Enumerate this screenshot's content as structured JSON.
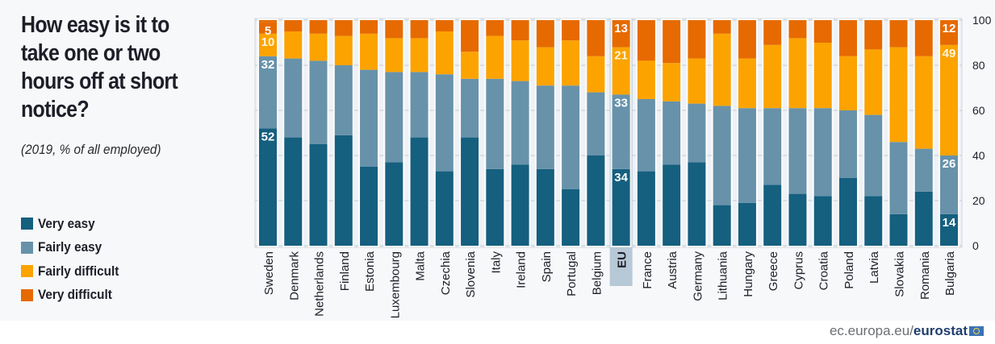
{
  "chart_data": {
    "type": "bar",
    "stacked": true,
    "orientation": "vertical",
    "title": "How easy is it to take one or two hours off at short notice?",
    "subtitle": "(2019, % of all employed)",
    "xlabel": "",
    "ylabel": "",
    "ylim": [
      0,
      100
    ],
    "y_ticks": [
      0,
      20,
      40,
      60,
      80,
      100
    ],
    "y_axis_side": "right",
    "grid": true,
    "legend_position": "left",
    "highlight_category": "EU",
    "categories": [
      "Sweden",
      "Denmark",
      "Netherlands",
      "Finland",
      "Estonia",
      "Luxembourg",
      "Malta",
      "Czechia",
      "Slovenia",
      "Italy",
      "Ireland",
      "Spain",
      "Portugal",
      "Belgium",
      "EU",
      "France",
      "Austria",
      "Germany",
      "Lithuania",
      "Hungary",
      "Greece",
      "Cyprus",
      "Croatia",
      "Poland",
      "Latvia",
      "Slovakia",
      "Romania",
      "Bulgaria"
    ],
    "series": [
      {
        "name": "Very easy",
        "color": "#155f7f",
        "values": [
          52,
          48,
          45,
          49,
          35,
          37,
          48,
          33,
          48,
          34,
          36,
          34,
          25,
          40,
          34,
          33,
          36,
          37,
          18,
          19,
          27,
          23,
          22,
          30,
          22,
          14,
          24,
          14
        ]
      },
      {
        "name": "Fairly easy",
        "color": "#6792aa",
        "values": [
          32,
          35,
          37,
          31,
          43,
          40,
          29,
          43,
          26,
          40,
          37,
          37,
          46,
          28,
          33,
          32,
          28,
          26,
          44,
          42,
          34,
          38,
          39,
          30,
          36,
          32,
          19,
          26
        ]
      },
      {
        "name": "Fairly difficult",
        "color": "#fca300",
        "values": [
          10,
          12,
          12,
          13,
          16,
          15,
          15,
          19,
          12,
          19,
          18,
          17,
          20,
          16,
          21,
          17,
          17,
          20,
          32,
          22,
          28,
          31,
          29,
          24,
          29,
          42,
          41,
          49
        ]
      },
      {
        "name": "Very difficult",
        "color": "#e66a00",
        "values": [
          5,
          5,
          6,
          7,
          6,
          8,
          8,
          5,
          14,
          7,
          9,
          12,
          9,
          16,
          13,
          18,
          19,
          17,
          6,
          17,
          11,
          8,
          10,
          16,
          13,
          12,
          16,
          12
        ]
      }
    ],
    "data_labels": [
      {
        "category": "Sweden",
        "series": "Very easy",
        "text": "52"
      },
      {
        "category": "Sweden",
        "series": "Fairly easy",
        "text": "32"
      },
      {
        "category": "Sweden",
        "series": "Fairly difficult",
        "text": "10"
      },
      {
        "category": "Sweden",
        "series": "Very difficult",
        "text": "5"
      },
      {
        "category": "EU",
        "series": "Very easy",
        "text": "34"
      },
      {
        "category": "EU",
        "series": "Fairly easy",
        "text": "33"
      },
      {
        "category": "EU",
        "series": "Fairly difficult",
        "text": "21"
      },
      {
        "category": "EU",
        "series": "Very difficult",
        "text": "13"
      },
      {
        "category": "Bulgaria",
        "series": "Very easy",
        "text": "14"
      },
      {
        "category": "Bulgaria",
        "series": "Fairly easy",
        "text": "26"
      },
      {
        "category": "Bulgaria",
        "series": "Fairly difficult",
        "text": "49"
      },
      {
        "category": "Bulgaria",
        "series": "Very difficult",
        "text": "12"
      }
    ]
  },
  "header": {
    "title": "How easy is it to take one or two hours off at short notice?",
    "subtitle": "(2019, % of all employed)"
  },
  "legend": [
    {
      "label": "Very easy",
      "color": "#155f7f"
    },
    {
      "label": "Fairly easy",
      "color": "#6792aa"
    },
    {
      "label": "Fairly difficult",
      "color": "#fca300"
    },
    {
      "label": "Very difficult",
      "color": "#e66a00"
    }
  ],
  "footer": {
    "source_prefix": "ec.europa.eu/",
    "source_brand": "eurostat",
    "logo_icon": "eu-flag-icon"
  }
}
